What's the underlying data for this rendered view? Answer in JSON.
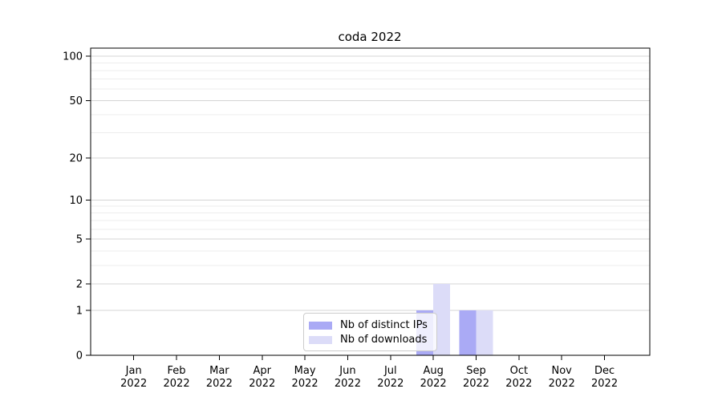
{
  "chart_data": {
    "type": "bar",
    "title": "coda 2022",
    "xlabel": "",
    "ylabel": "",
    "yscale": "log1p",
    "ylim": [
      0,
      113.5
    ],
    "grid": "horizontal",
    "legend_position": "lower-center",
    "y_ticks": [
      0,
      1,
      2,
      5,
      10,
      20,
      50,
      100
    ],
    "y_minor_ticks": [
      3,
      4,
      6,
      7,
      8,
      9,
      30,
      40,
      60,
      70,
      80,
      90
    ],
    "categories": [
      "Jan",
      "Feb",
      "Mar",
      "Apr",
      "May",
      "Jun",
      "Jul",
      "Aug",
      "Sep",
      "Oct",
      "Nov",
      "Dec"
    ],
    "x_tick_year": "2022",
    "series": [
      {
        "name": "Nb of distinct IPs",
        "color": "#aaaaf5",
        "values": [
          0,
          0,
          0,
          0,
          0,
          0,
          0,
          1,
          1,
          0,
          0,
          0
        ]
      },
      {
        "name": "Nb of downloads",
        "color": "#dcdcf8",
        "values": [
          0,
          0,
          0,
          0,
          0,
          0,
          0,
          2,
          1,
          0,
          0,
          0
        ]
      }
    ],
    "colors": {
      "grid_major": "#d4d4d4",
      "grid_minor": "#ededed",
      "axis": "#000000",
      "background": "#ffffff"
    }
  }
}
